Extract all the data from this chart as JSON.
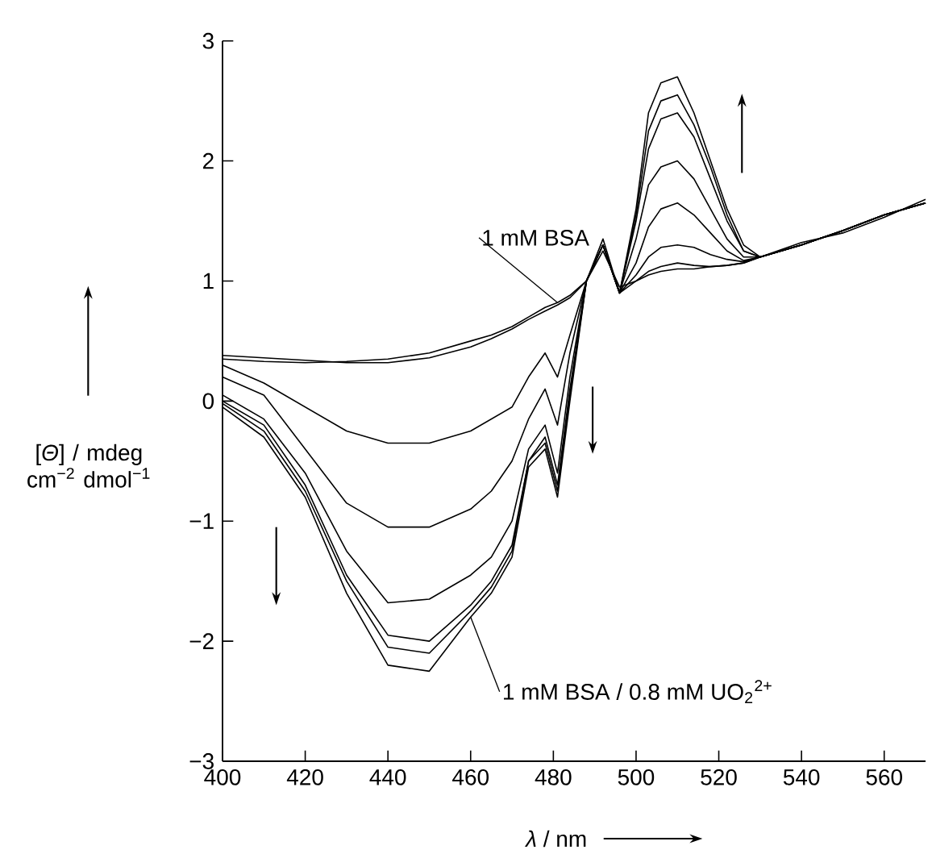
{
  "chart_data": {
    "type": "line",
    "xlabel": "*λ* / nm",
    "ylabel": "[*Θ*] / mdeg cm$^{−2}$ dmol$^{−1}$",
    "x": [
      400,
      410,
      420,
      430,
      440,
      450,
      460,
      465,
      470,
      474,
      478,
      481,
      484,
      488,
      492,
      496,
      500,
      503,
      506,
      510,
      514,
      518,
      522,
      526,
      530,
      540,
      550,
      560,
      570
    ],
    "xlim": [
      400,
      570
    ],
    "xticks": [
      400,
      420,
      440,
      460,
      480,
      500,
      520,
      540,
      560
    ],
    "ylim": [
      -3,
      3
    ],
    "yticks": [
      {
        "value": -3,
        "label": "−3"
      },
      {
        "value": -2,
        "label": "−2"
      },
      {
        "value": -1,
        "label": "−1"
      },
      0,
      1,
      2,
      3
    ],
    "series": [
      {
        "name": "1 mM BSA",
        "color": "#000000",
        "values": [
          0.35,
          0.33,
          0.32,
          0.33,
          0.35,
          0.4,
          0.5,
          0.55,
          0.62,
          0.7,
          0.78,
          0.82,
          0.88,
          1.0,
          1.25,
          0.95,
          1.0,
          1.05,
          1.08,
          1.1,
          1.1,
          1.12,
          1.13,
          1.15,
          1.2,
          1.3,
          1.42,
          1.55,
          1.65
        ]
      },
      {
        "color": "#000000",
        "values": [
          0.38,
          0.36,
          0.34,
          0.32,
          0.32,
          0.36,
          0.45,
          0.52,
          0.6,
          0.68,
          0.75,
          0.8,
          0.86,
          1.0,
          1.3,
          0.9,
          1.0,
          1.08,
          1.12,
          1.15,
          1.13,
          1.12,
          1.13,
          1.15,
          1.2,
          1.32,
          1.4,
          1.53,
          1.68
        ]
      },
      {
        "color": "#000000",
        "values": [
          0.3,
          0.15,
          -0.05,
          -0.25,
          -0.35,
          -0.35,
          -0.25,
          -0.15,
          -0.05,
          0.2,
          0.4,
          0.2,
          0.55,
          1.0,
          1.3,
          0.9,
          1.05,
          1.2,
          1.28,
          1.3,
          1.28,
          1.22,
          1.18,
          1.16,
          1.2,
          1.3,
          1.42,
          1.55,
          1.65
        ]
      },
      {
        "color": "#000000",
        "values": [
          0.2,
          0.05,
          -0.4,
          -0.85,
          -1.05,
          -1.05,
          -0.9,
          -0.75,
          -0.5,
          -0.15,
          0.1,
          -0.2,
          0.4,
          1.0,
          1.3,
          0.9,
          1.15,
          1.45,
          1.6,
          1.65,
          1.55,
          1.4,
          1.25,
          1.17,
          1.2,
          1.3,
          1.42,
          1.55,
          1.65
        ]
      },
      {
        "color": "#000000",
        "values": [
          0.05,
          -0.15,
          -0.6,
          -1.25,
          -1.68,
          -1.65,
          -1.45,
          -1.3,
          -1.0,
          -0.4,
          -0.2,
          -0.6,
          0.2,
          1.0,
          1.3,
          0.9,
          1.35,
          1.8,
          1.95,
          2.0,
          1.85,
          1.6,
          1.35,
          1.2,
          1.2,
          1.3,
          1.42,
          1.55,
          1.65
        ]
      },
      {
        "color": "#000000",
        "values": [
          0.0,
          -0.2,
          -0.7,
          -1.45,
          -1.95,
          -2.0,
          -1.7,
          -1.5,
          -1.2,
          -0.5,
          -0.3,
          -0.7,
          0.1,
          1.0,
          1.3,
          0.9,
          1.5,
          2.1,
          2.35,
          2.4,
          2.2,
          1.85,
          1.5,
          1.25,
          1.2,
          1.3,
          1.42,
          1.55,
          1.65
        ]
      },
      {
        "color": "#000000",
        "values": [
          -0.02,
          -0.25,
          -0.75,
          -1.5,
          -2.05,
          -2.1,
          -1.75,
          -1.55,
          -1.25,
          -0.5,
          -0.35,
          -0.75,
          0.05,
          1.0,
          1.3,
          0.9,
          1.55,
          2.25,
          2.5,
          2.55,
          2.3,
          1.95,
          1.55,
          1.25,
          1.2,
          1.3,
          1.42,
          1.55,
          1.65
        ]
      },
      {
        "name": "1 mM BSA / 0.8 mM UO$_{2}$$^{2+}$",
        "color": "#000000",
        "values": [
          -0.05,
          -0.3,
          -0.8,
          -1.6,
          -2.2,
          -2.25,
          -1.8,
          -1.6,
          -1.3,
          -0.55,
          -0.4,
          -0.8,
          0.0,
          1.0,
          1.35,
          0.9,
          1.6,
          2.4,
          2.65,
          2.7,
          2.4,
          2.0,
          1.6,
          1.3,
          1.2,
          1.3,
          1.42,
          1.55,
          1.65
        ]
      }
    ]
  }
}
